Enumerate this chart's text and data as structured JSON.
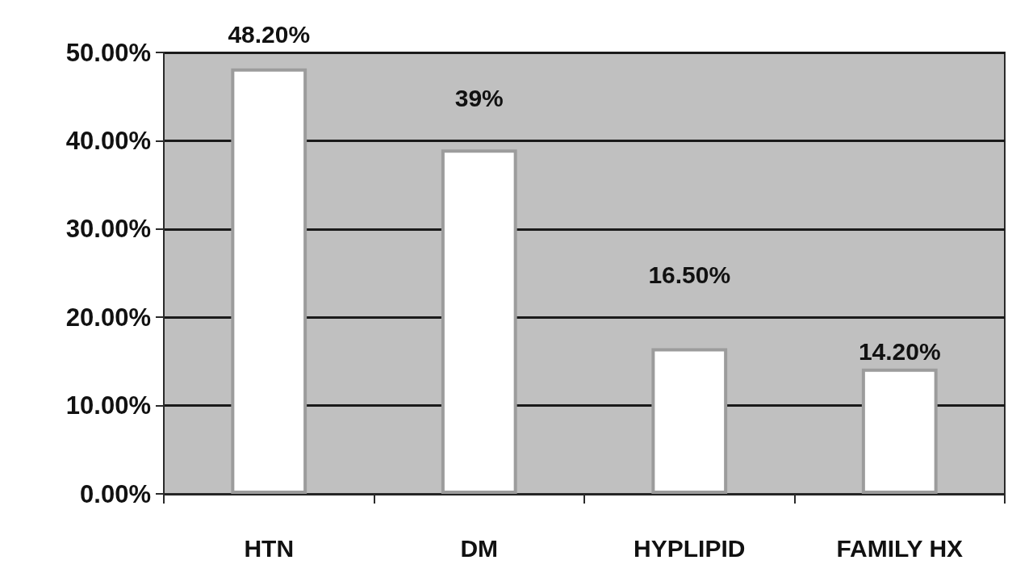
{
  "chart_data": {
    "type": "bar",
    "categories": [
      "HTN",
      "DM",
      "HYPLIPID",
      "FAMILY HX"
    ],
    "values": [
      48.2,
      39,
      16.5,
      14.2
    ],
    "color": "#ffffff",
    "value_labels": [
      "48.20%",
      "39%",
      "16.50%",
      "14.20%"
    ],
    "ylim": [
      0,
      50
    ],
    "yticks": [
      {
        "value": 0,
        "label": "0.00%"
      },
      {
        "value": 10,
        "label": "10.00%"
      },
      {
        "value": 20,
        "label": "20.00%"
      },
      {
        "value": 30,
        "label": "30.00%"
      },
      {
        "value": 40,
        "label": "40.00%"
      },
      {
        "value": 50,
        "label": "50.00%"
      }
    ],
    "grid": "y"
  }
}
